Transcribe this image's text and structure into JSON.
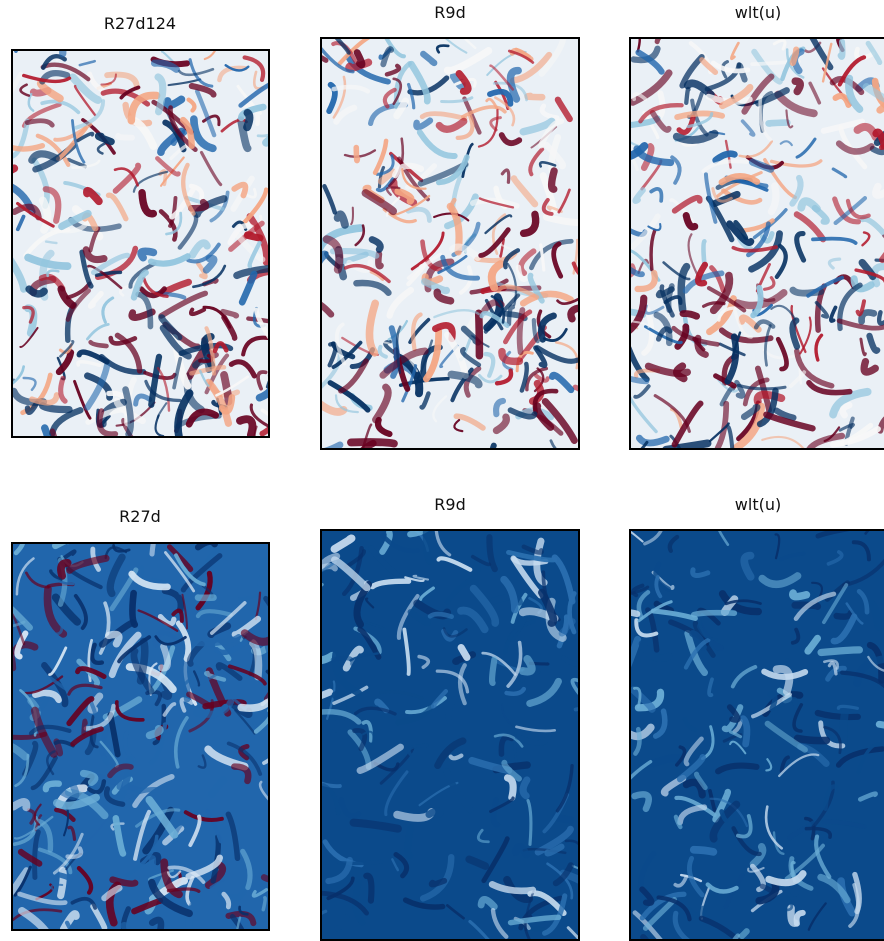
{
  "panels": [
    {
      "title": "R27d124",
      "colormap": "RdBu_r diverging",
      "palette": [
        "#053061",
        "#2166ac",
        "#92c5de",
        "#f7f7f7",
        "#f4a582",
        "#b2182b",
        "#67001f"
      ]
    },
    {
      "title": "R9d",
      "colormap": "RdBu_r diverging",
      "palette": [
        "#053061",
        "#2166ac",
        "#92c5de",
        "#f7f7f7",
        "#f4a582",
        "#b2182b",
        "#67001f"
      ]
    },
    {
      "title": "wlt(u)",
      "colormap": "RdBu_r diverging",
      "palette": [
        "#053061",
        "#2166ac",
        "#92c5de",
        "#f7f7f7",
        "#f4a582",
        "#b2182b",
        "#67001f"
      ]
    },
    {
      "title": "R27d",
      "colormap": "Blues with red highlights",
      "palette": [
        "#08306b",
        "#2166ac",
        "#6baed6",
        "#deebf7",
        "#b2182b",
        "#67001f"
      ]
    },
    {
      "title": "R9d",
      "colormap": "Blues",
      "palette": [
        "#08306b",
        "#0b4a8b",
        "#2b6fb0",
        "#6baed6",
        "#c6dbef"
      ]
    },
    {
      "title": "wlt(u)",
      "colormap": "Blues",
      "palette": [
        "#08306b",
        "#0b4a8b",
        "#2b6fb0",
        "#6baed6",
        "#c6dbef"
      ]
    }
  ]
}
